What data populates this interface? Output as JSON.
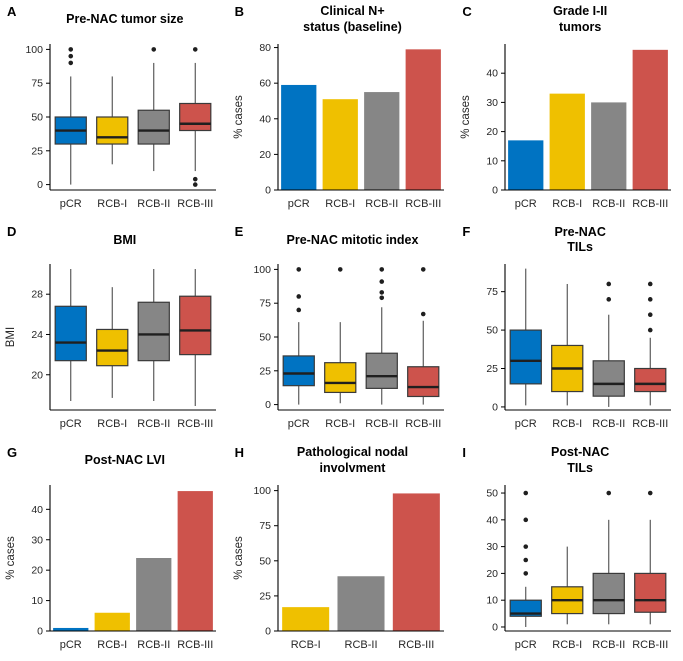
{
  "figure": {
    "background": "#ffffff",
    "groups": [
      "pCR",
      "RCB-I",
      "RCB-II",
      "RCB-III"
    ],
    "palette": {
      "pCR": "#0073C2",
      "RCB-I": "#EFC000",
      "RCB-II": "#868686",
      "RCB-III": "#CD534C"
    }
  },
  "chart_data": [
    {
      "panel": "A",
      "type": "box",
      "title": "Pre-NAC tumor size",
      "ylabel": "",
      "categories": [
        "pCR",
        "RCB-I",
        "RCB-II",
        "RCB-III"
      ],
      "colors": [
        "#0073C2",
        "#EFC000",
        "#868686",
        "#CD534C"
      ],
      "ylim": [
        -4,
        104
      ],
      "yticks": [
        0,
        25,
        50,
        75,
        100
      ],
      "grid": false,
      "boxes": [
        {
          "whisker_low": 0,
          "q1": 30,
          "median": 40,
          "q3": 50,
          "whisker_high": 80,
          "outliers": [
            90,
            95,
            100
          ]
        },
        {
          "whisker_low": 15,
          "q1": 30,
          "median": 35,
          "q3": 50,
          "whisker_high": 80,
          "outliers": []
        },
        {
          "whisker_low": 10,
          "q1": 30,
          "median": 40,
          "q3": 55,
          "whisker_high": 90,
          "outliers": [
            100
          ]
        },
        {
          "whisker_low": 10,
          "q1": 40,
          "median": 45,
          "q3": 60,
          "whisker_high": 90,
          "outliers": [
            100,
            4,
            0
          ]
        }
      ]
    },
    {
      "panel": "B",
      "type": "bar",
      "title": "Clinical N+\nstatus (baseline)",
      "ylabel": "% cases",
      "categories": [
        "pCR",
        "RCB-I",
        "RCB-II",
        "RCB-III"
      ],
      "colors": [
        "#0073C2",
        "#EFC000",
        "#868686",
        "#CD534C"
      ],
      "ylim": [
        0,
        82
      ],
      "yticks": [
        0,
        20,
        40,
        60,
        80
      ],
      "grid": false,
      "values": [
        59,
        51,
        55,
        79
      ]
    },
    {
      "panel": "C",
      "type": "bar",
      "title": "Grade I-II\ntumors",
      "ylabel": "% cases",
      "categories": [
        "pCR",
        "RCB-I",
        "RCB-II",
        "RCB-III"
      ],
      "colors": [
        "#0073C2",
        "#EFC000",
        "#868686",
        "#CD534C"
      ],
      "ylim": [
        0,
        50
      ],
      "yticks": [
        0,
        10,
        20,
        30,
        40
      ],
      "grid": false,
      "values": [
        17,
        33,
        30,
        48
      ]
    },
    {
      "panel": "D",
      "type": "box",
      "title": "BMI",
      "ylabel": "BMI",
      "categories": [
        "pCR",
        "RCB-I",
        "RCB-II",
        "RCB-III"
      ],
      "colors": [
        "#0073C2",
        "#EFC000",
        "#868686",
        "#CD534C"
      ],
      "ylim": [
        16.5,
        31
      ],
      "yticks": [
        20,
        24,
        28
      ],
      "grid": false,
      "boxes": [
        {
          "whisker_low": 17.4,
          "q1": 21.4,
          "median": 23.2,
          "q3": 26.8,
          "whisker_high": 30.5,
          "outliers": []
        },
        {
          "whisker_low": 17.7,
          "q1": 20.9,
          "median": 22.4,
          "q3": 24.5,
          "whisker_high": 28.7,
          "outliers": []
        },
        {
          "whisker_low": 17.4,
          "q1": 21.4,
          "median": 24.0,
          "q3": 27.2,
          "whisker_high": 30.5,
          "outliers": []
        },
        {
          "whisker_low": 16.9,
          "q1": 22.0,
          "median": 24.4,
          "q3": 27.8,
          "whisker_high": 30.5,
          "outliers": []
        }
      ]
    },
    {
      "panel": "E",
      "type": "box",
      "title": "Pre-NAC mitotic index",
      "ylabel": "",
      "categories": [
        "pCR",
        "RCB-I",
        "RCB-II",
        "RCB-III"
      ],
      "colors": [
        "#0073C2",
        "#EFC000",
        "#868686",
        "#CD534C"
      ],
      "ylim": [
        -4,
        104
      ],
      "yticks": [
        0,
        25,
        50,
        75,
        100
      ],
      "grid": false,
      "boxes": [
        {
          "whisker_low": 0,
          "q1": 14,
          "median": 23,
          "q3": 36,
          "whisker_high": 61,
          "outliers": [
            70,
            80,
            100
          ]
        },
        {
          "whisker_low": 1,
          "q1": 9,
          "median": 16,
          "q3": 31,
          "whisker_high": 61,
          "outliers": [
            100
          ]
        },
        {
          "whisker_low": 0,
          "q1": 12,
          "median": 21,
          "q3": 38,
          "whisker_high": 72,
          "outliers": [
            79,
            83,
            91,
            100
          ]
        },
        {
          "whisker_low": 0,
          "q1": 6,
          "median": 13,
          "q3": 28,
          "whisker_high": 62,
          "outliers": [
            67,
            100
          ]
        }
      ]
    },
    {
      "panel": "F",
      "type": "box",
      "title": "Pre-NAC\nTILs",
      "ylabel": "",
      "categories": [
        "pCR",
        "RCB-I",
        "RCB-II",
        "RCB-III"
      ],
      "colors": [
        "#0073C2",
        "#EFC000",
        "#868686",
        "#CD534C"
      ],
      "ylim": [
        -2,
        93
      ],
      "yticks": [
        0,
        25,
        50,
        75
      ],
      "grid": false,
      "boxes": [
        {
          "whisker_low": 1,
          "q1": 15,
          "median": 30,
          "q3": 50,
          "whisker_high": 90,
          "outliers": []
        },
        {
          "whisker_low": 1,
          "q1": 10,
          "median": 25,
          "q3": 40,
          "whisker_high": 80,
          "outliers": []
        },
        {
          "whisker_low": 0,
          "q1": 7,
          "median": 15,
          "q3": 30,
          "whisker_high": 60,
          "outliers": [
            70,
            80
          ]
        },
        {
          "whisker_low": 1,
          "q1": 10,
          "median": 15,
          "q3": 25,
          "whisker_high": 45,
          "outliers": [
            50,
            60,
            70,
            80
          ]
        }
      ]
    },
    {
      "panel": "G",
      "type": "bar",
      "title": "Post-NAC LVI",
      "ylabel": "% cases",
      "categories": [
        "pCR",
        "RCB-I",
        "RCB-II",
        "RCB-III"
      ],
      "colors": [
        "#0073C2",
        "#EFC000",
        "#868686",
        "#CD534C"
      ],
      "ylim": [
        0,
        48
      ],
      "yticks": [
        0,
        10,
        20,
        30,
        40
      ],
      "grid": false,
      "values": [
        1,
        6,
        24,
        46
      ]
    },
    {
      "panel": "H",
      "type": "bar",
      "title": "Pathological nodal\ninvolvment",
      "ylabel": "% cases",
      "categories": [
        "RCB-I",
        "RCB-II",
        "RCB-III"
      ],
      "colors": [
        "#EFC000",
        "#868686",
        "#CD534C"
      ],
      "ylim": [
        0,
        104
      ],
      "yticks": [
        0,
        25,
        50,
        75,
        100
      ],
      "grid": false,
      "values": [
        17,
        39,
        98
      ]
    },
    {
      "panel": "I",
      "type": "box",
      "title": "Post-NAC\nTILs",
      "ylabel": "",
      "categories": [
        "pCR",
        "RCB-I",
        "RCB-II",
        "RCB-III"
      ],
      "colors": [
        "#0073C2",
        "#EFC000",
        "#868686",
        "#CD534C"
      ],
      "ylim": [
        -1.5,
        53
      ],
      "yticks": [
        0,
        10,
        20,
        30,
        40,
        50
      ],
      "grid": false,
      "boxes": [
        {
          "whisker_low": 0,
          "q1": 4,
          "median": 5,
          "q3": 10,
          "whisker_high": 15,
          "outliers": [
            20,
            25,
            30,
            40,
            50
          ]
        },
        {
          "whisker_low": 1,
          "q1": 5,
          "median": 10,
          "q3": 15,
          "whisker_high": 30,
          "outliers": []
        },
        {
          "whisker_low": 1,
          "q1": 5,
          "median": 10,
          "q3": 20,
          "whisker_high": 40,
          "outliers": [
            50
          ]
        },
        {
          "whisker_low": 1,
          "q1": 5.5,
          "median": 10,
          "q3": 20,
          "whisker_high": 40,
          "outliers": [
            50
          ]
        }
      ]
    }
  ]
}
